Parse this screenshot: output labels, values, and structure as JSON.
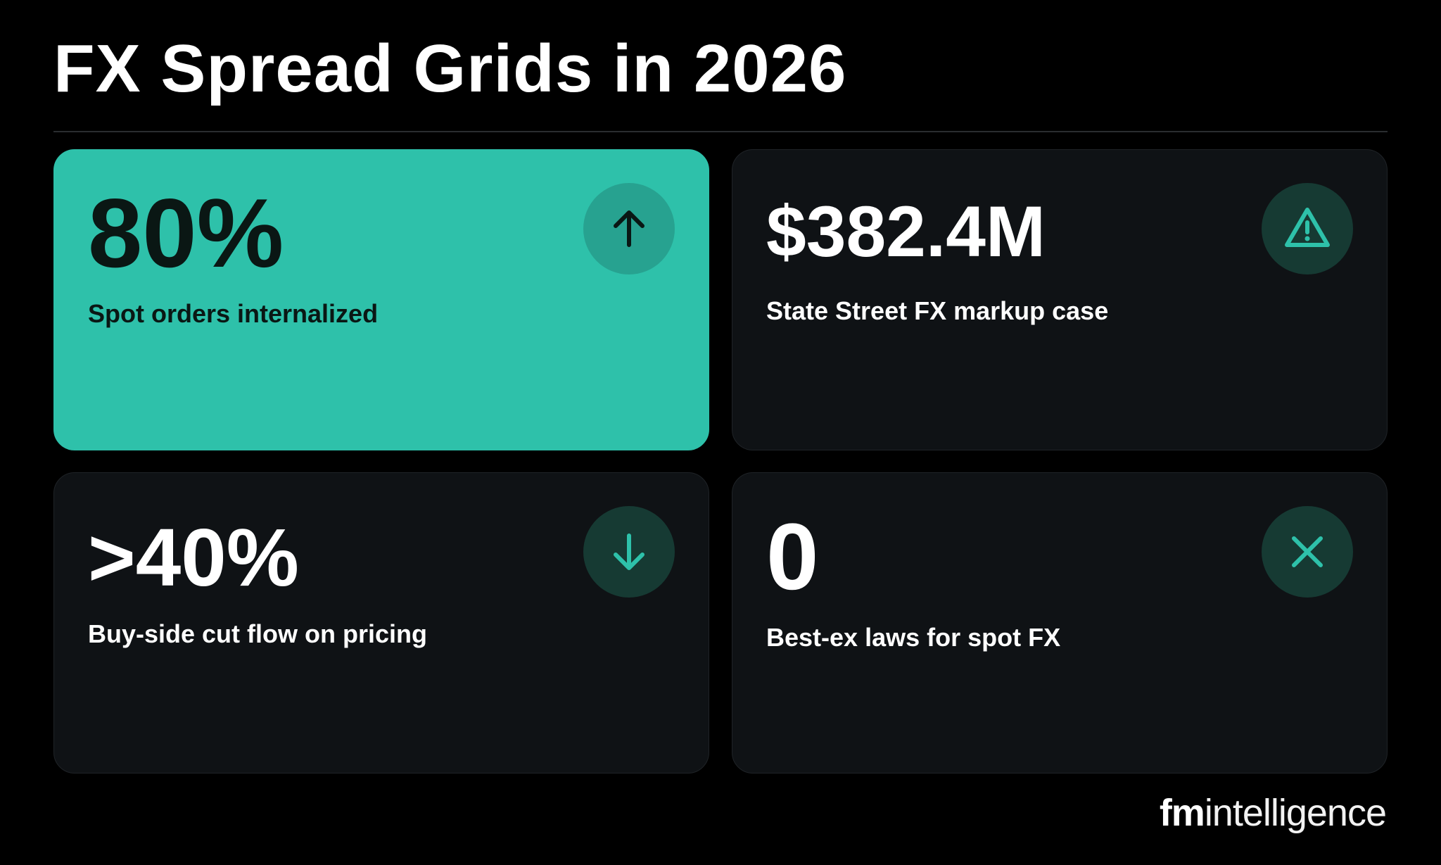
{
  "header": {
    "title": "FX Spread Grids in 2026"
  },
  "cards": [
    {
      "value": "80%",
      "label": "Spot orders internalized"
    },
    {
      "value": "$382.4M",
      "label": "State Street FX markup case"
    },
    {
      "value": ">40%",
      "label": "Buy-side cut flow on pricing"
    },
    {
      "value": "0",
      "label": "Best-ex laws for spot FX"
    }
  ],
  "footer": {
    "logo_bold": "fm",
    "logo_light": "intelligence"
  }
}
